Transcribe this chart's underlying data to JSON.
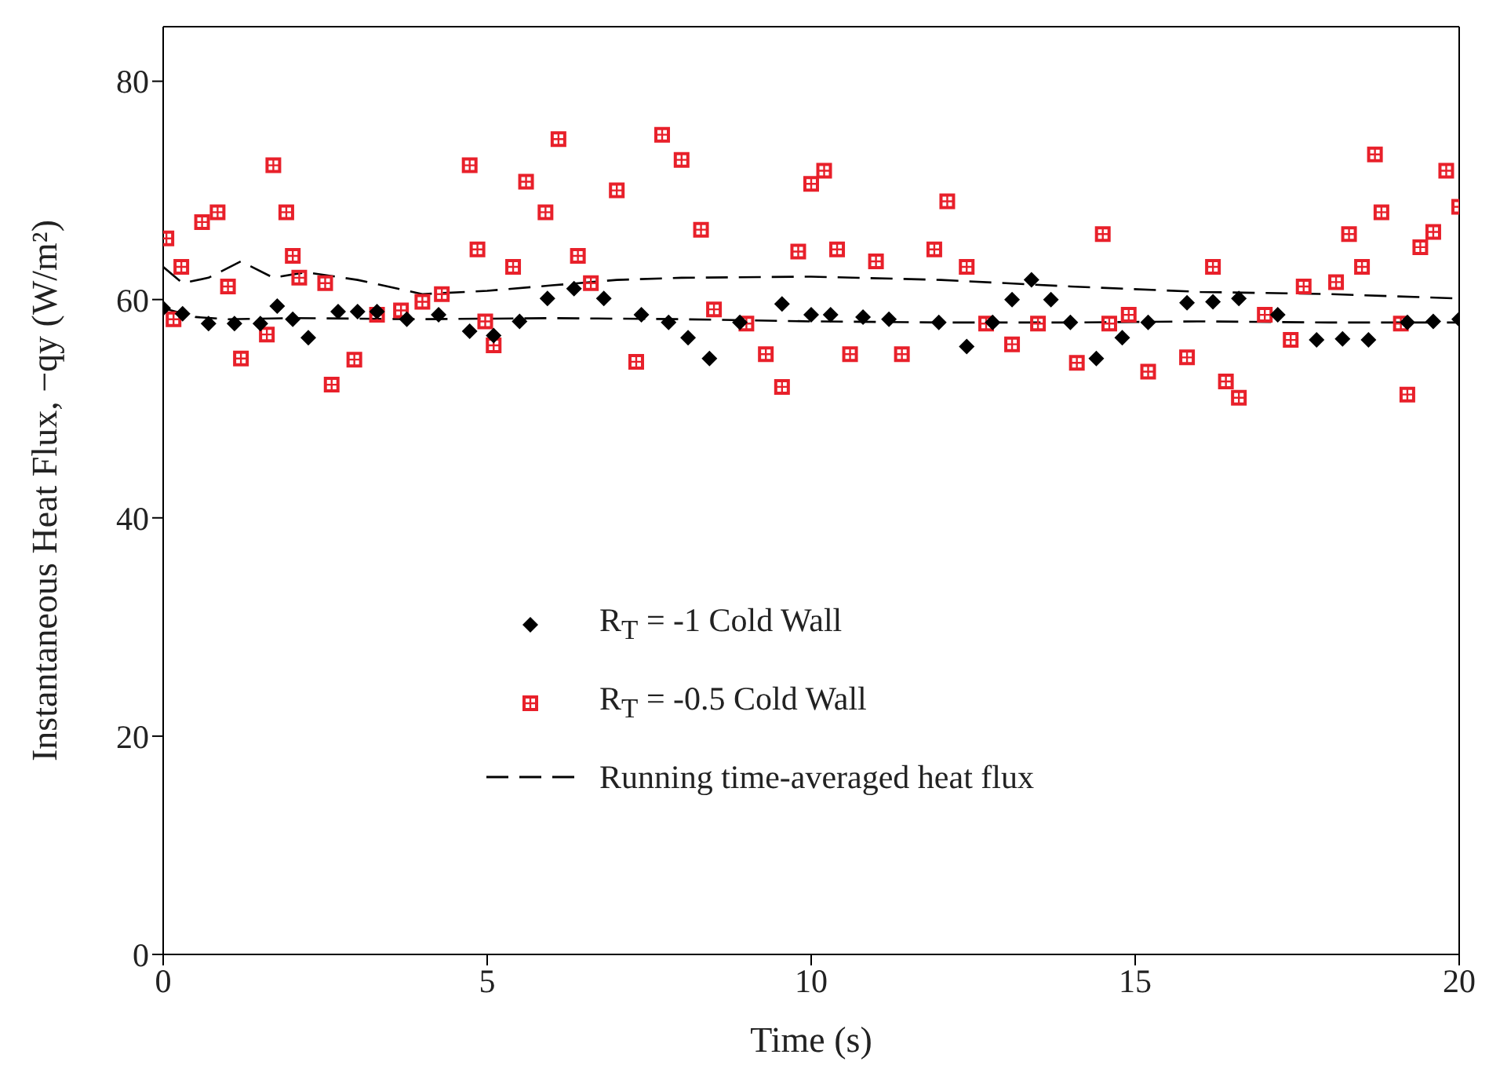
{
  "chart_data": {
    "type": "scatter",
    "xlabel": "Time (s)",
    "ylabel": "Instantaneous Heat Flux, −qy (W/m²)",
    "xlim": [
      0,
      20
    ],
    "xticks": [
      0,
      5,
      10,
      15,
      20
    ],
    "ylim": [
      0,
      85
    ],
    "yticks": [
      0,
      20,
      40,
      60,
      80
    ],
    "legend": "bottom",
    "series": [
      {
        "name": "R$_{T}$ = -1 Cold Wall",
        "color": "#000000",
        "marker": "diamond",
        "x": [
          0,
          0.3,
          0.7,
          1.1,
          1.5,
          1.76,
          2.0,
          2.24,
          2.7,
          3.0,
          3.3,
          3.76,
          4.25,
          4.73,
          5.1,
          5.5,
          5.93,
          6.34,
          6.8,
          7.38,
          7.8,
          8.1,
          8.43,
          8.9,
          9.55,
          10.0,
          10.3,
          10.8,
          11.2,
          11.97,
          12.4,
          12.8,
          13.1,
          13.4,
          13.7,
          14.0,
          14.4,
          14.8,
          15.2,
          15.8,
          16.2,
          16.6,
          17.2,
          17.8,
          18.2,
          18.6,
          19.2,
          19.6,
          20.0
        ],
        "values": [
          59.2,
          58.7,
          57.8,
          57.8,
          57.8,
          59.4,
          58.2,
          56.5,
          58.9,
          58.9,
          58.9,
          58.2,
          58.6,
          57.1,
          56.7,
          58.0,
          60.1,
          61.0,
          60.1,
          58.6,
          57.9,
          56.5,
          54.6,
          57.9,
          59.6,
          58.6,
          58.6,
          58.4,
          58.2,
          57.9,
          55.7,
          57.9,
          60.0,
          61.8,
          60.0,
          57.9,
          54.6,
          56.5,
          57.9,
          59.7,
          59.8,
          60.1,
          58.6,
          56.3,
          56.4,
          56.3,
          57.9,
          58.0,
          58.2
        ]
      },
      {
        "name": "R$_{T}$ = -0.5 Cold Wall",
        "color": "#e8202a",
        "marker": "square",
        "x": [
          0.05,
          0.16,
          0.28,
          0.6,
          0.84,
          1.0,
          1.2,
          1.6,
          1.7,
          1.9,
          2.0,
          2.1,
          2.5,
          2.6,
          2.95,
          3.3,
          3.67,
          4.0,
          4.3,
          4.73,
          4.85,
          4.97,
          5.1,
          5.4,
          5.6,
          5.9,
          6.1,
          6.4,
          6.6,
          7.0,
          7.3,
          7.7,
          8.0,
          8.3,
          8.5,
          9.0,
          9.3,
          9.55,
          9.8,
          10.0,
          10.2,
          10.4,
          10.6,
          11.0,
          11.4,
          11.9,
          12.1,
          12.4,
          12.7,
          13.1,
          13.5,
          14.1,
          14.5,
          14.6,
          14.9,
          15.2,
          15.8,
          16.2,
          16.4,
          16.6,
          17.0,
          17.4,
          17.6,
          18.1,
          18.3,
          18.5,
          18.7,
          18.8,
          19.1,
          19.2,
          19.4,
          19.6,
          19.8,
          20.0
        ],
        "values": [
          65.6,
          58.2,
          63.0,
          67.1,
          68.0,
          61.2,
          54.6,
          56.8,
          72.3,
          68.0,
          64.0,
          62.0,
          61.5,
          52.2,
          54.5,
          58.6,
          59.0,
          59.8,
          60.5,
          72.3,
          64.6,
          58.0,
          55.8,
          63.0,
          70.8,
          68.0,
          74.7,
          64.0,
          61.5,
          70.0,
          54.3,
          75.1,
          72.8,
          66.4,
          59.1,
          57.8,
          55.0,
          52.0,
          64.4,
          70.6,
          71.8,
          64.6,
          55.0,
          63.5,
          55.0,
          64.6,
          69.0,
          63.0,
          57.8,
          55.9,
          57.8,
          54.2,
          66.0,
          57.8,
          58.6,
          53.4,
          54.7,
          63.0,
          52.5,
          51.0,
          58.6,
          56.3,
          61.2,
          61.6,
          66.0,
          63.0,
          73.3,
          68.0,
          57.8,
          51.3,
          64.8,
          66.2,
          71.8,
          68.5
        ]
      },
      {
        "type": "line",
        "name": "Running time-averaged heat flux",
        "color": "#000000",
        "line_style": "dashed",
        "x": [
          0,
          0.3,
          0.7,
          1.2,
          1.7,
          2.2,
          3.0,
          4.0,
          5.0,
          6.0,
          7.0,
          8.0,
          10.0,
          12.0,
          14.0,
          16.0,
          18.0,
          20.0
        ],
        "values": [
          63.0,
          61.5,
          62.0,
          63.5,
          62.0,
          62.5,
          61.8,
          60.5,
          60.8,
          61.3,
          61.8,
          62.0,
          62.1,
          61.8,
          61.2,
          60.7,
          60.5,
          60.1
        ]
      },
      {
        "type": "line",
        "color": "#000000",
        "line_style": "dashed",
        "x": [
          0,
          0.5,
          1.0,
          2.0,
          4.0,
          6.0,
          8.0,
          10.0,
          12.0,
          14.0,
          16.0,
          18.0,
          20.0
        ],
        "values": [
          59.2,
          58.4,
          58.2,
          58.3,
          58.2,
          58.3,
          58.2,
          58.0,
          57.9,
          57.9,
          58.0,
          57.9,
          57.9
        ]
      }
    ]
  }
}
